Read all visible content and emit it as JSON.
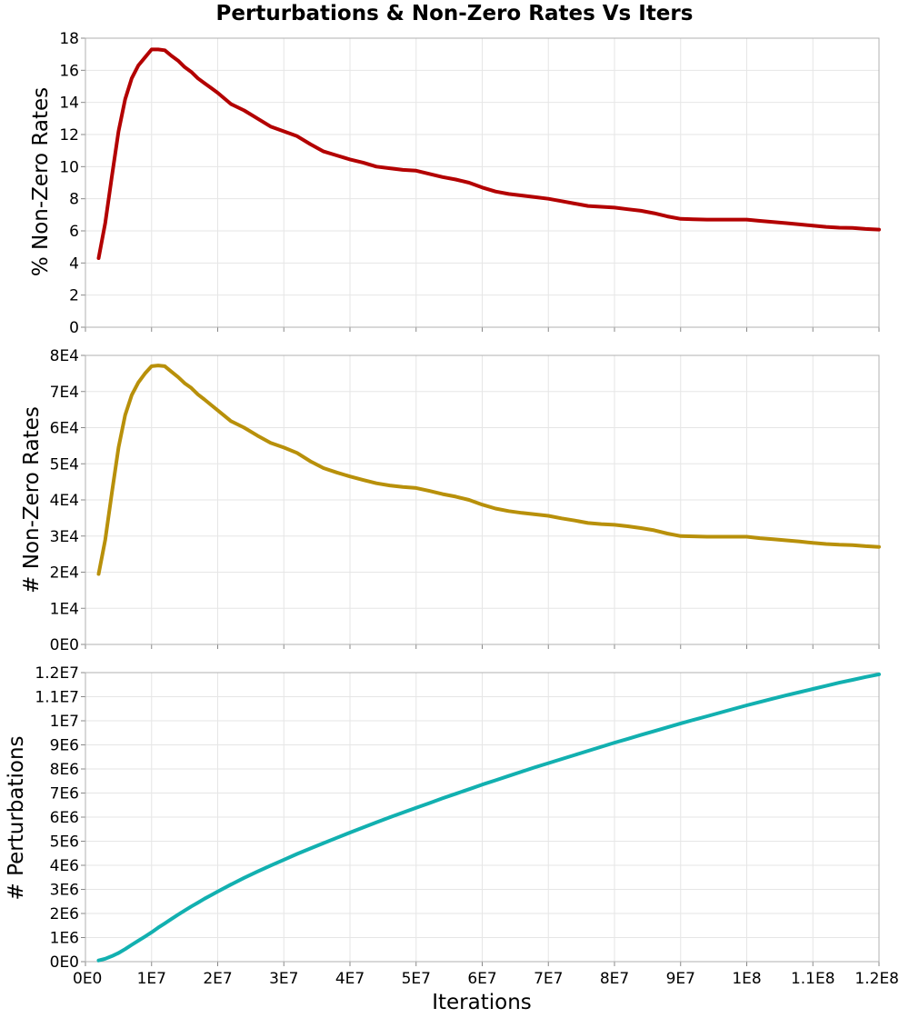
{
  "chart_data": {
    "type": "line",
    "title": "Perturbations & Non-Zero Rates Vs Iters",
    "xlabel": "Iterations",
    "xlim": [
      0,
      120000000
    ],
    "xticks": [
      0,
      10000000,
      20000000,
      30000000,
      40000000,
      50000000,
      60000000,
      70000000,
      80000000,
      90000000,
      100000000,
      110000000,
      120000000
    ],
    "xtick_labels": [
      "0E0",
      "1E7",
      "2E7",
      "3E7",
      "4E7",
      "5E7",
      "6E7",
      "7E7",
      "8E7",
      "9E7",
      "1E8",
      "1.1E8",
      "1.2E8"
    ],
    "x": [
      2000000,
      3000000,
      4000000,
      5000000,
      6000000,
      7000000,
      8000000,
      9000000,
      10000000,
      11000000,
      12000000,
      13000000,
      14000000,
      15000000,
      16000000,
      17000000,
      18000000,
      19000000,
      20000000,
      22000000,
      24000000,
      26000000,
      28000000,
      30000000,
      32000000,
      34000000,
      36000000,
      38000000,
      40000000,
      42000000,
      44000000,
      46000000,
      48000000,
      50000000,
      52000000,
      54000000,
      56000000,
      58000000,
      60000000,
      62000000,
      64000000,
      66000000,
      68000000,
      70000000,
      72000000,
      74000000,
      76000000,
      78000000,
      80000000,
      82000000,
      84000000,
      86000000,
      88000000,
      90000000,
      92000000,
      94000000,
      96000000,
      98000000,
      100000000,
      102000000,
      104000000,
      106000000,
      108000000,
      110000000,
      112000000,
      114000000,
      116000000,
      118000000,
      120000000
    ],
    "panels": [
      {
        "ylabel": "% Non-Zero Rates",
        "ylim": [
          0,
          18
        ],
        "yticks": [
          0,
          2,
          4,
          6,
          8,
          10,
          12,
          14,
          16,
          18
        ],
        "ytick_labels": [
          "0",
          "2",
          "4",
          "6",
          "8",
          "10",
          "12",
          "14",
          "16",
          "18"
        ],
        "series": [
          {
            "name": "% Non-Zero Rates",
            "color": "#b30000",
            "values": [
              4.3,
              6.5,
              9.4,
              12.2,
              14.2,
              15.5,
              16.3,
              16.8,
              17.3,
              17.3,
              17.25,
              16.9,
              16.6,
              16.2,
              15.9,
              15.5,
              15.2,
              14.9,
              14.6,
              13.9,
              13.5,
              13.0,
              12.5,
              12.2,
              11.9,
              11.4,
              10.95,
              10.7,
              10.45,
              10.25,
              10.0,
              9.9,
              9.8,
              9.75,
              9.55,
              9.35,
              9.2,
              9.0,
              8.7,
              8.45,
              8.3,
              8.2,
              8.1,
              8.0,
              7.85,
              7.7,
              7.55,
              7.5,
              7.45,
              7.35,
              7.25,
              7.1,
              6.9,
              6.75,
              6.72,
              6.7,
              6.7,
              6.7,
              6.7,
              6.62,
              6.55,
              6.48,
              6.4,
              6.32,
              6.25,
              6.2,
              6.18,
              6.12,
              6.08
            ]
          }
        ]
      },
      {
        "ylabel": "# Non-Zero Rates",
        "ylim": [
          0,
          80000
        ],
        "yticks": [
          0,
          10000,
          20000,
          30000,
          40000,
          50000,
          60000,
          70000,
          80000
        ],
        "ytick_labels": [
          "0E0",
          "1E4",
          "2E4",
          "3E4",
          "4E4",
          "5E4",
          "6E4",
          "7E4",
          "8E4"
        ],
        "series": [
          {
            "name": "# Non-Zero Rates",
            "color": "#b8900a",
            "values": [
              19500,
              29000,
              42000,
              54500,
              63500,
              69000,
              72500,
              75000,
              77000,
              77200,
              77000,
              75500,
              74000,
              72300,
              71000,
              69200,
              67800,
              66300,
              64800,
              61800,
              60000,
              57800,
              55800,
              54500,
              53000,
              50700,
              48800,
              47600,
              46500,
              45500,
              44600,
              44000,
              43600,
              43300,
              42500,
              41600,
              40900,
              40000,
              38700,
              37600,
              36900,
              36400,
              36000,
              35600,
              34900,
              34300,
              33600,
              33300,
              33100,
              32700,
              32200,
              31600,
              30700,
              30000,
              29900,
              29800,
              29800,
              29800,
              29800,
              29400,
              29100,
              28800,
              28500,
              28100,
              27800,
              27600,
              27500,
              27200,
              27000
            ]
          }
        ]
      },
      {
        "ylabel": "# Perturbations",
        "ylim": [
          0,
          12000000
        ],
        "yticks": [
          0,
          1000000,
          2000000,
          3000000,
          4000000,
          5000000,
          6000000,
          7000000,
          8000000,
          9000000,
          10000000,
          11000000,
          12000000
        ],
        "ytick_labels": [
          "0E0",
          "1E6",
          "2E6",
          "3E6",
          "4E6",
          "5E6",
          "6E6",
          "7E6",
          "8E6",
          "9E6",
          "1E7",
          "1.1E7",
          "1.2E7"
        ],
        "series": [
          {
            "name": "# Perturbations",
            "color": "#12b0b0",
            "values": [
              50000,
              120000,
              230000,
              360000,
              520000,
              700000,
              870000,
              1040000,
              1220000,
              1410000,
              1590000,
              1770000,
              1950000,
              2120000,
              2290000,
              2450000,
              2610000,
              2760000,
              2910000,
              3200000,
              3480000,
              3740000,
              3990000,
              4230000,
              4470000,
              4700000,
              4920000,
              5140000,
              5360000,
              5570000,
              5780000,
              5990000,
              6190000,
              6390000,
              6580000,
              6780000,
              6970000,
              7160000,
              7350000,
              7530000,
              7710000,
              7890000,
              8070000,
              8240000,
              8410000,
              8580000,
              8750000,
              8920000,
              9090000,
              9250000,
              9410000,
              9570000,
              9730000,
              9890000,
              10040000,
              10190000,
              10340000,
              10490000,
              10640000,
              10780000,
              10920000,
              11060000,
              11190000,
              11320000,
              11450000,
              11580000,
              11700000,
              11820000,
              11930000
            ]
          }
        ]
      }
    ]
  }
}
